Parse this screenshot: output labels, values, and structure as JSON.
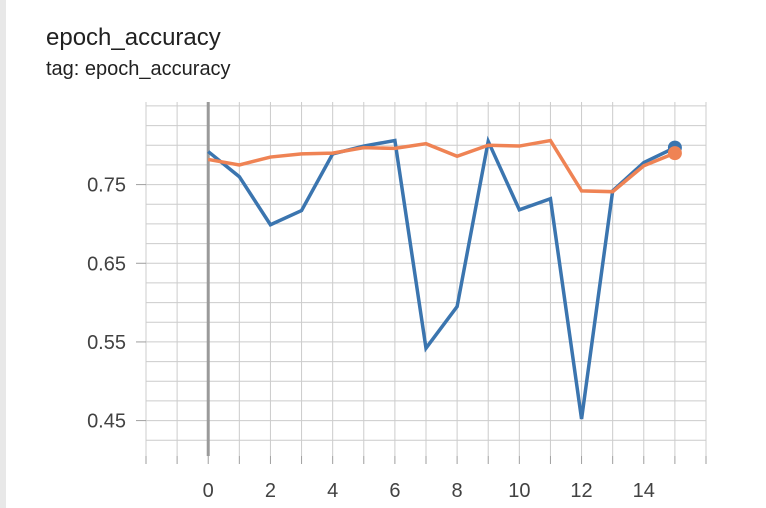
{
  "card": {
    "title": "epoch_accuracy",
    "subtitle": "tag: epoch_accuracy"
  },
  "colors": {
    "background": "#ffffff",
    "grid": "#cccccc",
    "axis": "#9e9e9e",
    "series_blue": "#3b75af",
    "series_orange": "#ef8354"
  },
  "chart_data": {
    "type": "line",
    "title": "epoch_accuracy",
    "xlabel": "",
    "ylabel": "",
    "xlim": [
      -2,
      16
    ],
    "ylim": [
      0.405,
      0.855
    ],
    "x_ticks": [
      0,
      2,
      4,
      6,
      8,
      10,
      12,
      14
    ],
    "y_ticks": [
      0.45,
      0.55,
      0.65,
      0.75
    ],
    "y_tick_labels": [
      "0.45",
      "0.55",
      "0.65",
      "0.75"
    ],
    "grid": true,
    "legend": "none",
    "series": [
      {
        "color": "#3b75af",
        "x": [
          0,
          1,
          2,
          3,
          4,
          5,
          6,
          7,
          8,
          9,
          10,
          11,
          12,
          13,
          14,
          15
        ],
        "values": [
          0.792,
          0.76,
          0.699,
          0.717,
          0.789,
          0.799,
          0.806,
          0.542,
          0.595,
          0.805,
          0.718,
          0.732,
          0.452,
          0.742,
          0.778,
          0.797
        ]
      },
      {
        "color": "#ef8354",
        "x": [
          0,
          1,
          2,
          3,
          4,
          5,
          6,
          7,
          8,
          9,
          10,
          11,
          12,
          13,
          14,
          15
        ],
        "values": [
          0.782,
          0.775,
          0.785,
          0.789,
          0.79,
          0.797,
          0.796,
          0.802,
          0.786,
          0.8,
          0.799,
          0.806,
          0.742,
          0.741,
          0.774,
          0.79
        ]
      }
    ]
  }
}
